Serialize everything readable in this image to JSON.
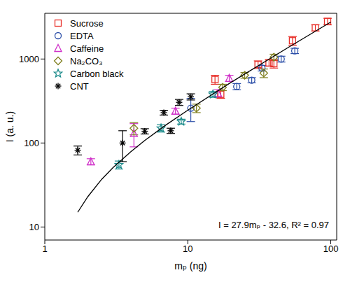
{
  "chart_data": {
    "type": "scatter",
    "x_label": "mₚ (ng)",
    "y_label": "I (a. u.)",
    "log": true,
    "legend": "upper left",
    "xlim": [
      1,
      110
    ],
    "ylim": [
      7,
      3500
    ],
    "xticks": [
      1,
      10,
      100
    ],
    "yticks": [
      10,
      100,
      1000
    ],
    "annotation": "I = 27.9mₚ - 32.6, R² = 0.97",
    "series": [
      {
        "name": "Sucrose",
        "color": "#e8302a",
        "marker": "square",
        "x": [
          15.5,
          17,
          31,
          37,
          40,
          54,
          78,
          95
        ],
        "values": [
          570,
          380,
          860,
          900,
          880,
          1650,
          2350,
          2800
        ],
        "errors": [
          70,
          40,
          90,
          80,
          100,
          200,
          200,
          250
        ]
      },
      {
        "name": "EDTA",
        "color": "#2c4fa8",
        "marker": "circle",
        "x": [
          10.5,
          22,
          28,
          33,
          45,
          56
        ],
        "values": [
          260,
          470,
          560,
          780,
          1000,
          1250
        ],
        "errors": [
          80,
          40,
          40,
          60,
          80,
          90
        ]
      },
      {
        "name": "Caffeine",
        "color": "#d030c8",
        "marker": "triangle",
        "x": [
          2.1,
          4.2,
          8.2,
          16.3,
          19.5
        ],
        "values": [
          60,
          130,
          240,
          390,
          590
        ],
        "errors": [
          5,
          40,
          20,
          40,
          50
        ]
      },
      {
        "name": "Na₂CO₃",
        "color": "#808020",
        "marker": "diamond",
        "x": [
          4.2,
          11.5,
          17.5,
          25,
          34,
          40
        ],
        "values": [
          150,
          260,
          460,
          640,
          680,
          1050
        ],
        "errors": [
          25,
          30,
          40,
          50,
          80,
          90
        ]
      },
      {
        "name": "Carbon black",
        "color": "#1a8a8a",
        "marker": "star",
        "x": [
          3.3,
          6.5,
          9,
          15
        ],
        "values": [
          55,
          150,
          180,
          380
        ],
        "errors": [
          6,
          15,
          12,
          30
        ]
      },
      {
        "name": "CNT",
        "color": "#000000",
        "marker": "asterisk",
        "x": [
          1.7,
          3.5,
          5,
          6.8,
          7.6,
          8.7,
          10.5
        ],
        "values": [
          82,
          100,
          138,
          230,
          140,
          305,
          355
        ],
        "errors": [
          10,
          40,
          10,
          15,
          10,
          25,
          30
        ]
      },
      {
        "type": "line",
        "color": "#000000",
        "x": [
          1.7,
          2,
          2.5,
          3,
          4,
          5,
          7,
          10,
          20,
          50,
          100
        ],
        "values": [
          15,
          23,
          37,
          51,
          79,
          107,
          163,
          246,
          525,
          1362,
          2757
        ]
      }
    ]
  }
}
